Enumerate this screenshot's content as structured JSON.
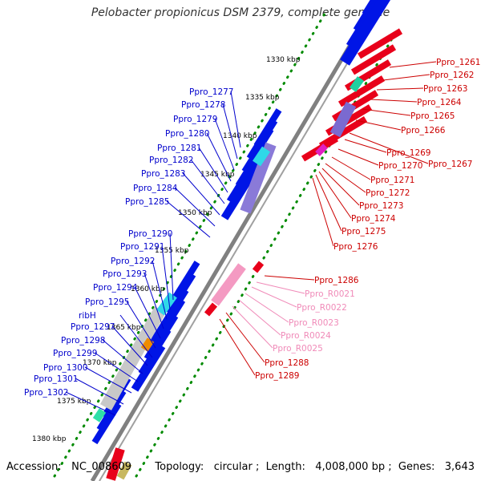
{
  "title": "Pelobacter propionicus DSM 2379, complete genome",
  "footer": {
    "accession_label": "Accession:",
    "accession": "NC_008609",
    "topology_label": "Topology:",
    "topology": "circular",
    "length_label": "Length:",
    "length": "4,008,000 bp",
    "genes_label": "Genes:",
    "genes": "3,643"
  },
  "scale_labels": [
    "1330 kbp",
    "1335 kbp",
    "1340 kbp",
    "1345 kbp",
    "1350 kbp",
    "1355 kbp",
    "1360 kbp",
    "1365 kbp",
    "1370 kbp",
    "1375 kbp",
    "1380 kbp"
  ],
  "left_labels": [
    "Ppro_1277",
    "Ppro_1278",
    "Ppro_1279",
    "Ppro_1280",
    "Ppro_1281",
    "Ppro_1282",
    "Ppro_1283",
    "Ppro_1284",
    "Ppro_1285",
    "Ppro_1290",
    "Ppro_1291",
    "Ppro_1292",
    "Ppro_1293",
    "Ppro_1294",
    "Ppro_1295",
    "ribH",
    "Ppro_1297",
    "Ppro_1298",
    "Ppro_1299",
    "Ppro_1300",
    "Ppro_1301",
    "Ppro_1302"
  ],
  "right_labels": [
    {
      "text": "Ppro_1261",
      "kind": "gene"
    },
    {
      "text": "Ppro_1262",
      "kind": "gene"
    },
    {
      "text": "Ppro_1263",
      "kind": "gene"
    },
    {
      "text": "Ppro_1264",
      "kind": "gene"
    },
    {
      "text": "Ppro_1265",
      "kind": "gene"
    },
    {
      "text": "Ppro_1266",
      "kind": "gene"
    },
    {
      "text": "Ppro_1269",
      "kind": "gene"
    },
    {
      "text": "Ppro_1267",
      "kind": "gene"
    },
    {
      "text": "Ppro_1270",
      "kind": "gene"
    },
    {
      "text": "Ppro_1271",
      "kind": "gene"
    },
    {
      "text": "Ppro_1272",
      "kind": "gene"
    },
    {
      "text": "Ppro_1273",
      "kind": "gene"
    },
    {
      "text": "Ppro_1274",
      "kind": "gene"
    },
    {
      "text": "Ppro_1275",
      "kind": "gene"
    },
    {
      "text": "Ppro_1276",
      "kind": "gene"
    },
    {
      "text": "Ppro_1286",
      "kind": "gene"
    },
    {
      "text": "Ppro_R0021",
      "kind": "rna"
    },
    {
      "text": "Ppro_R0022",
      "kind": "rna"
    },
    {
      "text": "Ppro_R0023",
      "kind": "rna"
    },
    {
      "text": "Ppro_R0024",
      "kind": "rna"
    },
    {
      "text": "Ppro_R0025",
      "kind": "rna"
    },
    {
      "text": "Ppro_1288",
      "kind": "gene"
    },
    {
      "text": "Ppro_1289",
      "kind": "gene"
    }
  ],
  "colors": {
    "reverse_strand": "#e8001a",
    "forward_strand": "#0015e6",
    "rna": "#f49ac2",
    "rna_label": "#f08ab8",
    "backbone": "#808080",
    "gc_dots": "#008a00",
    "forward_label": "#0000cc",
    "reverse_label": "#cc0000"
  }
}
